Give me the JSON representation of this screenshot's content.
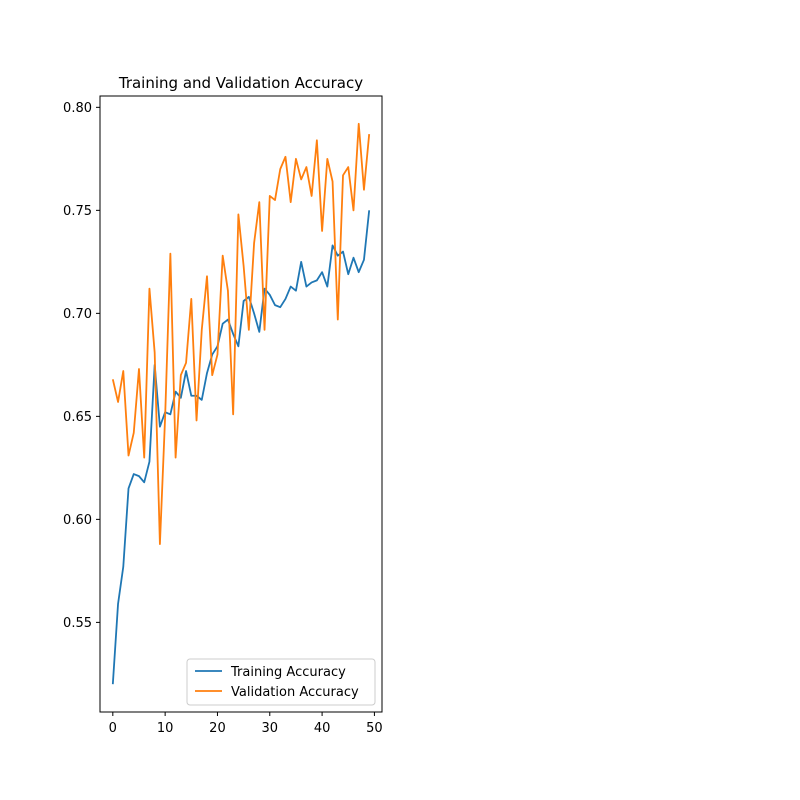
{
  "chart_data": {
    "type": "line",
    "title": "Training and Validation Accuracy",
    "xlabel": "",
    "ylabel": "",
    "xlim": [
      -2.45,
      51.45
    ],
    "ylim": [
      0.5065,
      0.8055
    ],
    "xticks": [
      0,
      10,
      20,
      30,
      40,
      50
    ],
    "yticks": [
      0.55,
      0.6,
      0.65,
      0.7,
      0.75,
      0.8
    ],
    "ytick_labels": [
      "0.55",
      "0.60",
      "0.65",
      "0.70",
      "0.75",
      "0.80"
    ],
    "grid": false,
    "legend_position": "lower-right",
    "x": [
      0,
      1,
      2,
      3,
      4,
      5,
      6,
      7,
      8,
      9,
      10,
      11,
      12,
      13,
      14,
      15,
      16,
      17,
      18,
      19,
      20,
      21,
      22,
      23,
      24,
      25,
      26,
      27,
      28,
      29,
      30,
      31,
      32,
      33,
      34,
      35,
      36,
      37,
      38,
      39,
      40,
      41,
      42,
      43,
      44,
      45,
      46,
      47,
      48,
      49
    ],
    "series": [
      {
        "name": "Training Accuracy",
        "color": "#1f77b4",
        "values": [
          0.52,
          0.559,
          0.577,
          0.615,
          0.622,
          0.621,
          0.618,
          0.628,
          0.675,
          0.645,
          0.652,
          0.651,
          0.662,
          0.659,
          0.672,
          0.66,
          0.66,
          0.658,
          0.671,
          0.68,
          0.684,
          0.695,
          0.697,
          0.69,
          0.684,
          0.706,
          0.708,
          0.7,
          0.691,
          0.712,
          0.709,
          0.704,
          0.703,
          0.707,
          0.713,
          0.711,
          0.725,
          0.713,
          0.715,
          0.716,
          0.72,
          0.713,
          0.733,
          0.728,
          0.73,
          0.719,
          0.727,
          0.72,
          0.726,
          0.75
        ]
      },
      {
        "name": "Validation Accuracy",
        "color": "#ff7f0e",
        "values": [
          0.668,
          0.657,
          0.672,
          0.631,
          0.642,
          0.673,
          0.63,
          0.712,
          0.681,
          0.588,
          0.65,
          0.729,
          0.63,
          0.67,
          0.676,
          0.707,
          0.648,
          0.692,
          0.718,
          0.67,
          0.68,
          0.728,
          0.711,
          0.651,
          0.748,
          0.723,
          0.692,
          0.734,
          0.754,
          0.692,
          0.757,
          0.755,
          0.77,
          0.776,
          0.754,
          0.775,
          0.765,
          0.771,
          0.757,
          0.784,
          0.74,
          0.775,
          0.764,
          0.697,
          0.767,
          0.771,
          0.75,
          0.792,
          0.76,
          0.787
        ]
      }
    ]
  }
}
